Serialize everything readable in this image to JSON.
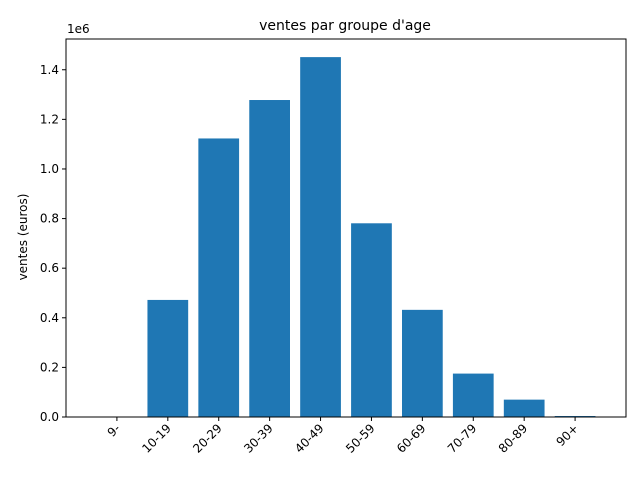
{
  "chart_data": {
    "type": "bar",
    "title": "ventes par groupe d'age",
    "xlabel": "",
    "ylabel": "ventes (euros)",
    "offset_text": "1e6",
    "categories": [
      "9-",
      "10-19",
      "20-29",
      "30-39",
      "40-49",
      "50-59",
      "60-69",
      "70-79",
      "80-89",
      "90+"
    ],
    "values": [
      0,
      472000,
      1123000,
      1278000,
      1451000,
      781000,
      432000,
      175000,
      70000,
      4000
    ],
    "ylim": [
      0,
      1524000
    ],
    "yticks": [
      0,
      0.2,
      0.4,
      0.6,
      0.8,
      1.0,
      1.2,
      1.4
    ],
    "ytick_labels": [
      "0.0",
      "0.2",
      "0.4",
      "0.6",
      "0.8",
      "1.0",
      "1.2",
      "1.4"
    ],
    "ytick_scale": 1000000,
    "grid": false,
    "bar_color": "#1f77b4",
    "xtick_rotation": 45
  }
}
